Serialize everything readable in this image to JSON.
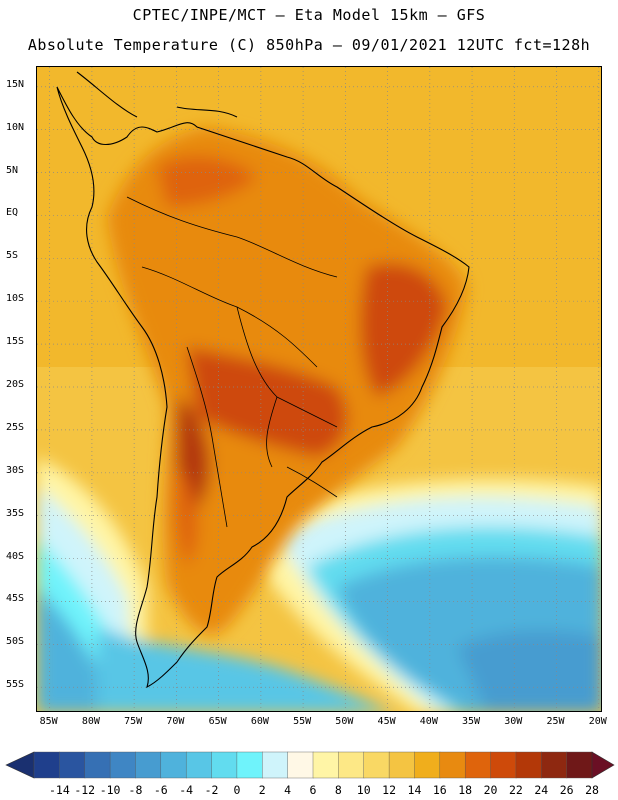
{
  "header": {
    "line1": "CPTEC/INPE/MCT –  Eta Model 15km – GFS",
    "line2": "Absolute Temperature (C) 850hPa – 09/01/2021 12UTC fct=128h"
  },
  "map": {
    "lat_labels": [
      "15N",
      "10N",
      "5N",
      "EQ",
      "5S",
      "10S",
      "15S",
      "20S",
      "25S",
      "30S",
      "35S",
      "40S",
      "45S",
      "50S",
      "55S"
    ],
    "lon_labels": [
      "85W",
      "80W",
      "75W",
      "70W",
      "65W",
      "60W",
      "55W",
      "50W",
      "45W",
      "40W",
      "35W",
      "30W",
      "25W",
      "20W"
    ],
    "lat_values": [
      15,
      10,
      5,
      0,
      -5,
      -10,
      -15,
      -20,
      -25,
      -30,
      -35,
      -40,
      -45,
      -50,
      -55
    ],
    "lon_values": [
      -85,
      -80,
      -75,
      -70,
      -65,
      -60,
      -55,
      -50,
      -45,
      -40,
      -35,
      -30,
      -25,
      -20
    ]
  },
  "colorbar": {
    "labels": [
      "-14",
      "-12",
      "-10",
      "-8",
      "-6",
      "-4",
      "-2",
      "0",
      "2",
      "4",
      "6",
      "8",
      "10",
      "12",
      "14",
      "16",
      "18",
      "20",
      "22",
      "24",
      "26",
      "28"
    ],
    "colors": [
      "#1f3f8c",
      "#2a55a0",
      "#3670b4",
      "#3f86c4",
      "#479cd0",
      "#4fb2dc",
      "#58c6e6",
      "#62dcef",
      "#6ff3fb",
      "#cff4fb",
      "#fff8e6",
      "#fff5a6",
      "#fde886",
      "#f9d864",
      "#f4c442",
      "#f0ae1c",
      "#e88a10",
      "#df640c",
      "#ce4a0a",
      "#b33808",
      "#8e2810",
      "#6f1818"
    ],
    "under_color": "#1a3070",
    "over_color": "#6a0f24"
  }
}
